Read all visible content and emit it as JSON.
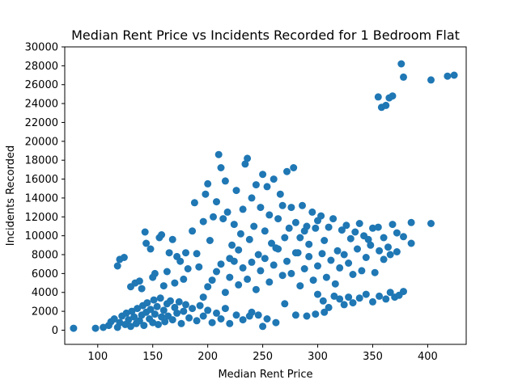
{
  "chart_data": {
    "type": "scatter",
    "title": "Median Rent Price vs Incidents Recorded for 1 Bedroom Flat",
    "xlabel": "Median Rent Price",
    "ylabel": "Incidents Recorded",
    "xlim": [
      70,
      435
    ],
    "ylim": [
      -1500,
      30000
    ],
    "xticks": [
      100,
      150,
      200,
      250,
      300,
      350,
      400
    ],
    "yticks": [
      0,
      2000,
      4000,
      6000,
      8000,
      10000,
      12000,
      14000,
      16000,
      18000,
      20000,
      22000,
      24000,
      26000,
      28000,
      30000
    ],
    "grid": false,
    "marker_color": "#1f77b4",
    "points": [
      [
        78,
        200
      ],
      [
        98,
        200
      ],
      [
        105,
        300
      ],
      [
        110,
        500
      ],
      [
        112,
        900
      ],
      [
        115,
        1200
      ],
      [
        118,
        300
      ],
      [
        120,
        800
      ],
      [
        122,
        1500
      ],
      [
        125,
        600
      ],
      [
        126,
        1800
      ],
      [
        128,
        1100
      ],
      [
        130,
        400
      ],
      [
        131,
        2000
      ],
      [
        133,
        1400
      ],
      [
        135,
        700
      ],
      [
        136,
        2300
      ],
      [
        138,
        1000
      ],
      [
        140,
        1600
      ],
      [
        141,
        2600
      ],
      [
        142,
        500
      ],
      [
        144,
        1900
      ],
      [
        145,
        2900
      ],
      [
        147,
        1200
      ],
      [
        148,
        2200
      ],
      [
        150,
        800
      ],
      [
        151,
        3200
      ],
      [
        152,
        1700
      ],
      [
        154,
        2500
      ],
      [
        155,
        600
      ],
      [
        157,
        3400
      ],
      [
        158,
        1400
      ],
      [
        160,
        2100
      ],
      [
        161,
        900
      ],
      [
        163,
        2800
      ],
      [
        164,
        1500
      ],
      [
        166,
        3100
      ],
      [
        168,
        1100
      ],
      [
        170,
        2400
      ],
      [
        172,
        1800
      ],
      [
        174,
        3000
      ],
      [
        176,
        700
      ],
      [
        178,
        2000
      ],
      [
        180,
        2700
      ],
      [
        183,
        1300
      ],
      [
        186,
        2300
      ],
      [
        190,
        1000
      ],
      [
        193,
        2600
      ],
      [
        196,
        1500
      ],
      [
        200,
        2100
      ],
      [
        204,
        800
      ],
      [
        208,
        1800
      ],
      [
        212,
        1200
      ],
      [
        216,
        2300
      ],
      [
        220,
        700
      ],
      [
        226,
        1600
      ],
      [
        232,
        1100
      ],
      [
        240,
        1900
      ],
      [
        250,
        400
      ],
      [
        118,
        6800
      ],
      [
        120,
        7500
      ],
      [
        124,
        7700
      ],
      [
        130,
        4600
      ],
      [
        134,
        5000
      ],
      [
        138,
        5200
      ],
      [
        140,
        4400
      ],
      [
        143,
        10400
      ],
      [
        144,
        9200
      ],
      [
        148,
        8600
      ],
      [
        150,
        5600
      ],
      [
        152,
        6000
      ],
      [
        156,
        9800
      ],
      [
        158,
        10100
      ],
      [
        160,
        4700
      ],
      [
        163,
        6200
      ],
      [
        165,
        8200
      ],
      [
        168,
        9600
      ],
      [
        170,
        5000
      ],
      [
        172,
        7800
      ],
      [
        175,
        7300
      ],
      [
        178,
        5400
      ],
      [
        180,
        8200
      ],
      [
        182,
        6500
      ],
      [
        186,
        10500
      ],
      [
        188,
        13500
      ],
      [
        190,
        8100
      ],
      [
        192,
        6700
      ],
      [
        196,
        11500
      ],
      [
        198,
        14400
      ],
      [
        200,
        15500
      ],
      [
        202,
        9500
      ],
      [
        205,
        12000
      ],
      [
        208,
        13600
      ],
      [
        210,
        18600
      ],
      [
        212,
        17200
      ],
      [
        214,
        11800
      ],
      [
        216,
        15800
      ],
      [
        218,
        12500
      ],
      [
        220,
        7600
      ],
      [
        222,
        9000
      ],
      [
        224,
        11200
      ],
      [
        226,
        14800
      ],
      [
        228,
        8500
      ],
      [
        230,
        10200
      ],
      [
        232,
        12800
      ],
      [
        234,
        17600
      ],
      [
        236,
        18200
      ],
      [
        238,
        9600
      ],
      [
        240,
        14000
      ],
      [
        242,
        11000
      ],
      [
        244,
        15400
      ],
      [
        246,
        8000
      ],
      [
        248,
        13000
      ],
      [
        250,
        16500
      ],
      [
        252,
        10500
      ],
      [
        254,
        15200
      ],
      [
        256,
        12200
      ],
      [
        258,
        9200
      ],
      [
        260,
        16000
      ],
      [
        262,
        8700
      ],
      [
        264,
        11800
      ],
      [
        266,
        14400
      ],
      [
        268,
        13200
      ],
      [
        270,
        9800
      ],
      [
        272,
        16800
      ],
      [
        274,
        10800
      ],
      [
        276,
        13000
      ],
      [
        278,
        17200
      ],
      [
        280,
        11400
      ],
      [
        282,
        8200
      ],
      [
        284,
        9800
      ],
      [
        286,
        13200
      ],
      [
        288,
        10500
      ],
      [
        290,
        11000
      ],
      [
        292,
        9100
      ],
      [
        295,
        12500
      ],
      [
        298,
        10800
      ],
      [
        300,
        11600
      ],
      [
        303,
        12100
      ],
      [
        306,
        9500
      ],
      [
        310,
        10900
      ],
      [
        314,
        11800
      ],
      [
        318,
        8400
      ],
      [
        322,
        10600
      ],
      [
        326,
        11100
      ],
      [
        330,
        9700
      ],
      [
        334,
        10400
      ],
      [
        338,
        11300
      ],
      [
        342,
        10000
      ],
      [
        346,
        9600
      ],
      [
        350,
        10800
      ],
      [
        355,
        10900
      ],
      [
        360,
        9800
      ],
      [
        364,
        8800
      ],
      [
        368,
        11200
      ],
      [
        372,
        10300
      ],
      [
        378,
        9900
      ],
      [
        385,
        11400
      ],
      [
        403,
        11300
      ],
      [
        385,
        9200
      ],
      [
        196,
        3500
      ],
      [
        200,
        4600
      ],
      [
        204,
        5300
      ],
      [
        208,
        6200
      ],
      [
        212,
        7000
      ],
      [
        216,
        4000
      ],
      [
        220,
        5600
      ],
      [
        224,
        7300
      ],
      [
        228,
        4800
      ],
      [
        232,
        6600
      ],
      [
        236,
        5400
      ],
      [
        240,
        7200
      ],
      [
        244,
        4300
      ],
      [
        248,
        6300
      ],
      [
        252,
        7600
      ],
      [
        256,
        5100
      ],
      [
        260,
        6900
      ],
      [
        264,
        8600
      ],
      [
        268,
        5800
      ],
      [
        272,
        7300
      ],
      [
        276,
        6000
      ],
      [
        280,
        8200
      ],
      [
        284,
        4700
      ],
      [
        288,
        6500
      ],
      [
        292,
        7800
      ],
      [
        296,
        5300
      ],
      [
        300,
        6800
      ],
      [
        304,
        8100
      ],
      [
        308,
        5600
      ],
      [
        312,
        7400
      ],
      [
        316,
        4900
      ],
      [
        320,
        6600
      ],
      [
        324,
        8000
      ],
      [
        328,
        7100
      ],
      [
        332,
        5900
      ],
      [
        336,
        8600
      ],
      [
        340,
        6300
      ],
      [
        344,
        7700
      ],
      [
        348,
        9000
      ],
      [
        352,
        6100
      ],
      [
        356,
        8400
      ],
      [
        360,
        7500
      ],
      [
        366,
        8000
      ],
      [
        372,
        8300
      ],
      [
        300,
        3800
      ],
      [
        305,
        3100
      ],
      [
        310,
        2400
      ],
      [
        315,
        3600
      ],
      [
        320,
        3300
      ],
      [
        324,
        2700
      ],
      [
        328,
        3500
      ],
      [
        332,
        2900
      ],
      [
        338,
        3400
      ],
      [
        344,
        3800
      ],
      [
        350,
        3000
      ],
      [
        356,
        3600
      ],
      [
        362,
        3300
      ],
      [
        366,
        4000
      ],
      [
        370,
        3500
      ],
      [
        374,
        3700
      ],
      [
        378,
        4100
      ],
      [
        270,
        2800
      ],
      [
        280,
        1600
      ],
      [
        290,
        1500
      ],
      [
        298,
        1700
      ],
      [
        306,
        1900
      ],
      [
        262,
        800
      ],
      [
        254,
        1200
      ],
      [
        246,
        1600
      ],
      [
        238,
        1500
      ],
      [
        355,
        24700
      ],
      [
        358,
        23600
      ],
      [
        362,
        23800
      ],
      [
        365,
        24600
      ],
      [
        368,
        24800
      ],
      [
        376,
        28200
      ],
      [
        378,
        26800
      ],
      [
        403,
        26500
      ],
      [
        418,
        26900
      ],
      [
        424,
        27000
      ]
    ]
  }
}
